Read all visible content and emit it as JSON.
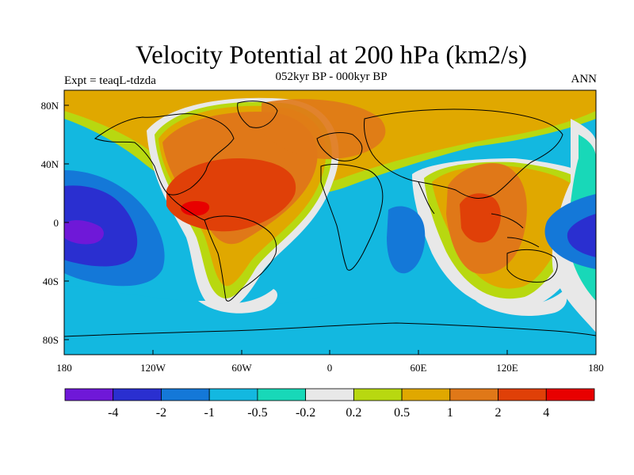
{
  "title": "Velocity Potential at 200 hPa (km2/s)",
  "subtitle": "052kyr BP - 000kyr BP",
  "left_label": "Expt = teaqL-tdzda",
  "right_label": "ANN",
  "lat_ticks": [
    "80N",
    "40N",
    "0",
    "40S",
    "80S"
  ],
  "lon_ticks": [
    "180",
    "120W",
    "60W",
    "0",
    "60E",
    "120E",
    "180"
  ],
  "colorbar": {
    "colors": [
      "#6f18d8",
      "#2a2fd0",
      "#1478d8",
      "#13b8e0",
      "#18d8b8",
      "#e8e8e8",
      "#b8d810",
      "#e0a800",
      "#e07818",
      "#e04008",
      "#e80000"
    ],
    "labels": [
      "-4",
      "-2",
      "-1",
      "-0.5",
      "-0.2",
      "0.2",
      "0.5",
      "1",
      "2",
      "4"
    ]
  },
  "map": {
    "background_color": "#13b8e0",
    "features": [
      "Tropical Atlantic and Americas: positive maximum (2 to 4)",
      "Maritime Continent / West Pacific: positive maximum (2 to 4)",
      "Central Pacific: negative minimum (below -4)",
      "Indian Ocean (west): negative center (-1 to -2)"
    ]
  }
}
